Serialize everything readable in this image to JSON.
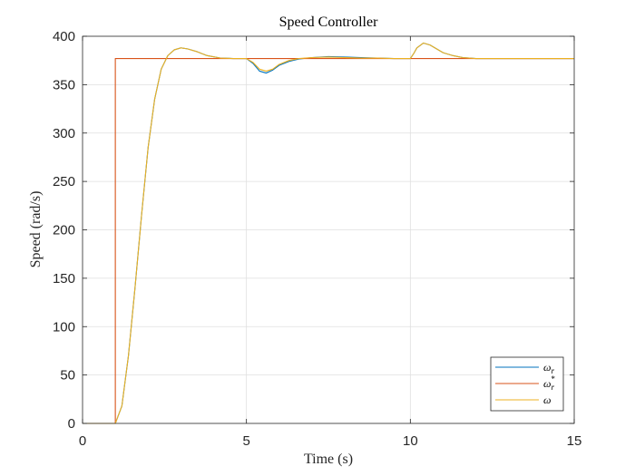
{
  "chart_data": {
    "type": "line",
    "title": "Speed Controller",
    "xlabel": "Time (s)",
    "ylabel": "Speed (rad/s)",
    "xlim": [
      0,
      15
    ],
    "ylim": [
      0,
      400
    ],
    "xticks": [
      0,
      5,
      10,
      15
    ],
    "yticks": [
      0,
      50,
      100,
      150,
      200,
      250,
      300,
      350,
      400
    ],
    "grid": true,
    "legend_position": "bottom-right",
    "series": [
      {
        "name": "ωr",
        "legend_base": "ω",
        "legend_sub": "r",
        "legend_sup": "",
        "color": "#0072BD",
        "x": [
          0,
          0.95,
          1.0,
          1.2,
          1.4,
          1.6,
          1.8,
          2.0,
          2.2,
          2.4,
          2.6,
          2.8,
          3.0,
          3.2,
          3.5,
          3.8,
          4.2,
          4.6,
          5.0,
          5.2,
          5.4,
          5.6,
          5.8,
          6.0,
          6.3,
          6.6,
          7.0,
          7.5,
          8.0,
          8.5,
          9.0,
          9.5,
          10.0,
          10.1,
          10.2,
          10.4,
          10.6,
          10.8,
          11.0,
          11.3,
          11.6,
          12.0,
          12.5,
          13.0,
          14.0,
          15.0
        ],
        "y": [
          0,
          0,
          0,
          18,
          70,
          140,
          215,
          285,
          335,
          366,
          380,
          386,
          388,
          387,
          384,
          380,
          377.5,
          377,
          377,
          372,
          364,
          362,
          365,
          370,
          374,
          376.5,
          378,
          379,
          378.5,
          378,
          377.5,
          377,
          377,
          382,
          388,
          393,
          391,
          387,
          383,
          380,
          378,
          377,
          377,
          377,
          377,
          377
        ]
      },
      {
        "name": "ωr*",
        "legend_base": "ω",
        "legend_sub": "r",
        "legend_sup": "*",
        "color": "#D95319",
        "x": [
          0,
          1.0,
          1.0,
          15.0
        ],
        "y": [
          0,
          0,
          377,
          377
        ]
      },
      {
        "name": "ω",
        "legend_base": "ω",
        "legend_sub": "",
        "legend_sup": "",
        "color": "#EDB120",
        "x": [
          0,
          0.95,
          1.0,
          1.2,
          1.4,
          1.6,
          1.8,
          2.0,
          2.2,
          2.4,
          2.6,
          2.8,
          3.0,
          3.2,
          3.5,
          3.8,
          4.2,
          4.6,
          5.0,
          5.2,
          5.4,
          5.6,
          5.8,
          6.0,
          6.3,
          6.6,
          7.0,
          7.5,
          8.0,
          8.5,
          9.0,
          9.5,
          10.0,
          10.1,
          10.2,
          10.4,
          10.6,
          10.8,
          11.0,
          11.3,
          11.6,
          12.0,
          12.5,
          13.0,
          14.0,
          15.0
        ],
        "y": [
          0,
          0,
          0,
          18,
          70,
          140,
          215,
          285,
          335,
          366,
          380,
          386,
          388,
          387,
          384,
          380,
          377.5,
          377,
          377,
          373,
          366,
          364,
          366,
          371,
          375,
          377,
          378,
          378.5,
          378,
          377.5,
          377.5,
          377,
          377,
          382,
          388,
          393,
          391,
          387,
          383,
          380,
          378,
          377,
          377,
          377,
          377,
          377
        ]
      }
    ]
  }
}
